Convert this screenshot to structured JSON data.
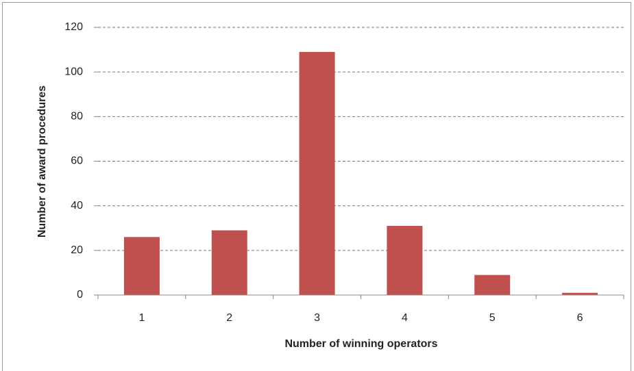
{
  "chart_data": {
    "type": "bar",
    "xlabel": "Number of winning operators",
    "ylabel": "Number of award procedures",
    "categories": [
      "1",
      "2",
      "3",
      "4",
      "5",
      "6"
    ],
    "values": [
      26,
      29,
      109,
      31,
      9,
      1
    ],
    "color": "#c0504d",
    "ylim": [
      0,
      120
    ],
    "yticks": [
      0,
      20,
      40,
      60,
      80,
      100,
      120
    ],
    "grid": true
  }
}
